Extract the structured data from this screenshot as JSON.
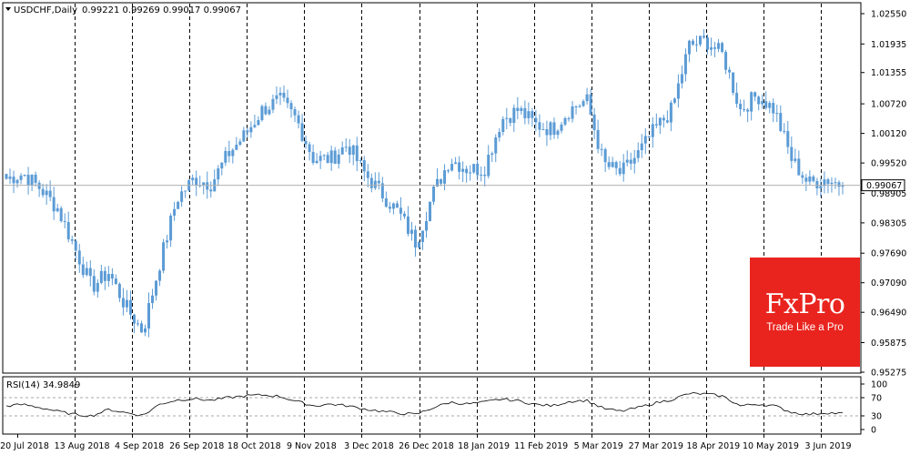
{
  "header": {
    "symbol": "USDCHF,Daily",
    "ohlc": "0.99221 0.99269 0.99017 0.99067"
  },
  "rsi_header": "RSI(14) 34.9849",
  "logo": {
    "brand": "FxPro",
    "tagline": "Trade Like a Pro"
  },
  "colors": {
    "candle": "#5b9bd5",
    "rsi": "#000000",
    "grid": "#000000",
    "logo_bg": "#e9241e"
  },
  "chart_data": [
    {
      "type": "candlestick",
      "title": "USDCHF,Daily",
      "ylim": [
        0.95275,
        1.0255
      ],
      "y_ticks": [
        "1.02550",
        "1.01935",
        "1.01355",
        "1.00720",
        "1.00120",
        "0.99520",
        "0.98905",
        "0.98305",
        "0.97690",
        "0.97090",
        "0.96490",
        "0.95875",
        "0.95275"
      ],
      "current_price": "0.99067",
      "x_labels": [
        "20 Jul 2018",
        "13 Aug 2018",
        "4 Sep 2018",
        "26 Sep 2018",
        "18 Oct 2018",
        "9 Nov 2018",
        "3 Dec 2018",
        "26 Dec 2018",
        "18 Jan 2019",
        "11 Feb 2019",
        "5 Mar 2019",
        "27 Mar 2019",
        "18 Apr 2019",
        "10 May 2019",
        "3 Jun 2019"
      ],
      "key_closes": [
        0.992,
        0.993,
        0.99,
        0.986,
        0.978,
        0.97,
        0.973,
        0.966,
        0.961,
        0.975,
        0.988,
        0.992,
        0.991,
        0.997,
        1.001,
        1.006,
        1.008,
        1.004,
        0.996,
        0.996,
        0.999,
        0.993,
        0.989,
        0.985,
        0.979,
        0.989,
        0.996,
        0.994,
        0.994,
        1.004,
        1.006,
        1.003,
        1.002,
        1.006,
        1.008,
        0.995,
        0.993,
        0.997,
        1.002,
        1.006,
        1.019,
        1.02,
        1.017,
        1.006,
        1.009,
        1.006,
        0.996,
        0.991,
        0.992,
        0.9907
      ]
    },
    {
      "type": "line",
      "title": "RSI(14) 34.9849",
      "ylim": [
        0,
        100
      ],
      "y_ticks": [
        "100",
        "70",
        "30",
        "0"
      ],
      "levels": [
        70,
        30
      ],
      "key_values": [
        52,
        55,
        48,
        40,
        33,
        30,
        44,
        37,
        31,
        56,
        65,
        68,
        64,
        70,
        74,
        76,
        73,
        62,
        52,
        56,
        52,
        45,
        40,
        36,
        33,
        48,
        60,
        56,
        60,
        67,
        63,
        55,
        52,
        62,
        64,
        46,
        40,
        48,
        58,
        66,
        79,
        78,
        73,
        52,
        56,
        52,
        38,
        33,
        37,
        35
      ]
    }
  ]
}
